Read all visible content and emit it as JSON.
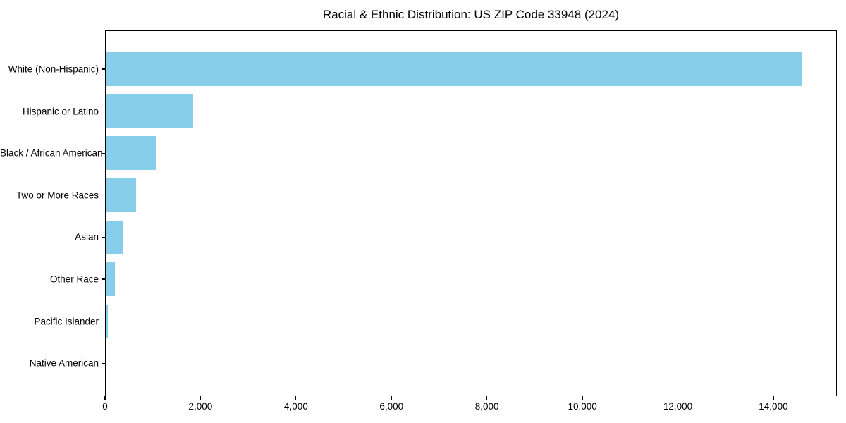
{
  "title": "Racial & Ethnic Distribution: US ZIP Code 33948 (2024)",
  "chart_data": {
    "type": "bar",
    "orientation": "horizontal",
    "title": "Racial & Ethnic Distribution: US ZIP Code 33948 (2024)",
    "xlabel": "",
    "ylabel": "",
    "categories": [
      "White (Non-Hispanic)",
      "Hispanic or Latino",
      "Black / African American",
      "Two or More Races",
      "Asian",
      "Other Race",
      "Pacific Islander",
      "Native American"
    ],
    "values": [
      14580,
      1835,
      1050,
      640,
      375,
      190,
      45,
      10
    ],
    "bar_color": "#87CEEB",
    "xlim": [
      0,
      15330
    ],
    "xticks": [
      0,
      2000,
      4000,
      6000,
      8000,
      10000,
      12000,
      14000
    ],
    "xtick_labels": [
      "0",
      "2,000",
      "4,000",
      "6,000",
      "8,000",
      "10,000",
      "12,000",
      "14,000"
    ],
    "grid": false,
    "legend": null,
    "plot_border": "#000000",
    "background": "#ffffff"
  }
}
